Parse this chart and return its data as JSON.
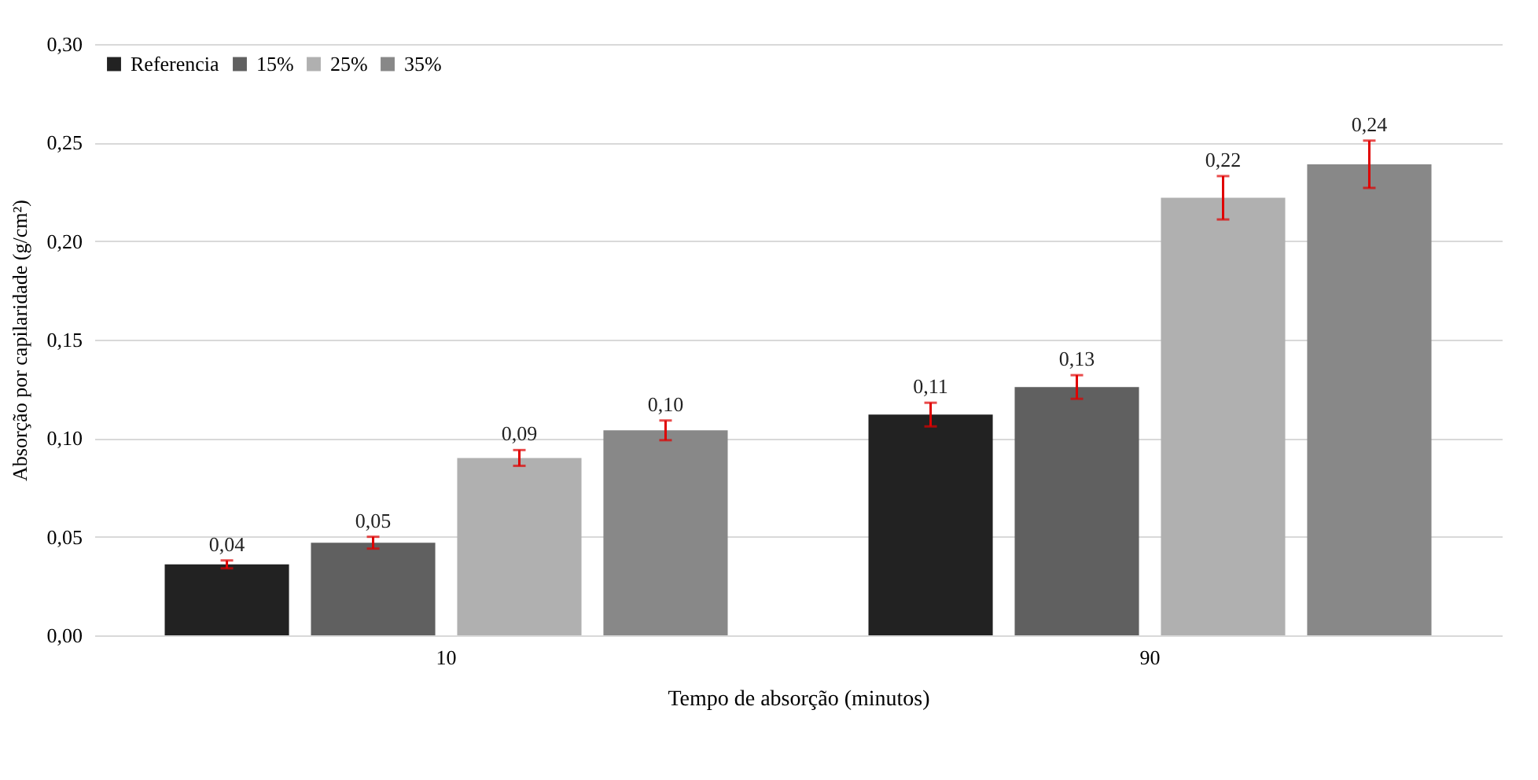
{
  "chart_data": {
    "type": "bar",
    "xlabel": "Tempo de absorção (minutos)",
    "ylabel": "Absorção por capilaridade  (g/cm²)",
    "categories": [
      "10",
      "90"
    ],
    "series": [
      {
        "name": "Referencia",
        "color": "#222222",
        "values": [
          0.036,
          0.112
        ],
        "errors": [
          0.002,
          0.006
        ],
        "value_labels": [
          "0,04",
          "0,11"
        ]
      },
      {
        "name": "15%",
        "color": "#606060",
        "values": [
          0.047,
          0.126
        ],
        "errors": [
          0.003,
          0.006
        ],
        "value_labels": [
          "0,05",
          "0,13"
        ]
      },
      {
        "name": "25%",
        "color": "#b0b0b0",
        "values": [
          0.09,
          0.222
        ],
        "errors": [
          0.004,
          0.011
        ],
        "value_labels": [
          "0,09",
          "0,22"
        ]
      },
      {
        "name": "35%",
        "color": "#888888",
        "values": [
          0.104,
          0.239
        ],
        "errors": [
          0.005,
          0.012
        ],
        "value_labels": [
          "0,10",
          "0,24"
        ]
      }
    ],
    "ylim": [
      0,
      0.3
    ],
    "yticks": [
      {
        "value": 0,
        "label": "0,00"
      },
      {
        "value": 0.05,
        "label": "0,05"
      },
      {
        "value": 0.1,
        "label": "0,10"
      },
      {
        "value": 0.15,
        "label": "0,15"
      },
      {
        "value": 0.2,
        "label": "0,20"
      },
      {
        "value": 0.25,
        "label": "0,25"
      },
      {
        "value": 0.3,
        "label": "0,30"
      }
    ],
    "grid": "y",
    "legend": "top left"
  }
}
